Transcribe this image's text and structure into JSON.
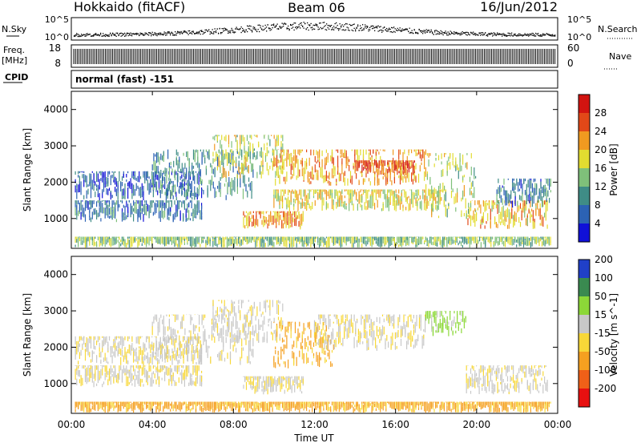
{
  "header": {
    "station": "Hokkaido (fitACF)",
    "beam": "Beam 06",
    "date": "16/Jun/2012"
  },
  "strip": {
    "nsky_label": "N.Sky",
    "nsky_ticks": [
      "10^5",
      "10^0"
    ],
    "nsearch_label": "N.Search",
    "nsearch_ticks": [
      "10^5",
      "10^0"
    ],
    "freq_label_line1": "Freq.",
    "freq_label_line2": "[MHz]",
    "freq_ticks": [
      "18",
      "8"
    ],
    "nave_label": "Nave",
    "nave_ticks": [
      "60",
      "0"
    ],
    "cpid_label": "CPID",
    "cpid_text": "normal (fast) -151"
  },
  "chart_data": [
    {
      "type": "heatmap",
      "name": "power-panel",
      "title": "",
      "xlabel": "Time UT",
      "ylabel": "Slant Range [km]",
      "xlim": [
        0,
        24
      ],
      "ylim": [
        180,
        4500
      ],
      "xticks": [
        "00:00",
        "04:00",
        "08:00",
        "12:00",
        "16:00",
        "20:00",
        "00:00"
      ],
      "yticks": [
        "1000",
        "2000",
        "3000",
        "4000"
      ],
      "ytick_values": [
        1000,
        2000,
        3000,
        4000
      ],
      "colorbar": {
        "label": "Power [dB]",
        "range": [
          0,
          32
        ],
        "ticks": [
          "4",
          "8",
          "12",
          "16",
          "20",
          "24",
          "28"
        ],
        "tick_values": [
          4,
          8,
          12,
          16,
          20,
          24,
          28
        ],
        "colors": [
          "#1010d8",
          "#2c62b4",
          "#3f8c86",
          "#7fc07a",
          "#e2dc30",
          "#f09a20",
          "#e24818",
          "#d21410"
        ]
      },
      "bands": [
        {
          "t0": 0.2,
          "t1": 6.5,
          "r0": 900,
          "r1": 1500,
          "value": 8
        },
        {
          "t0": 0.2,
          "t1": 6.5,
          "r0": 1500,
          "r1": 2300,
          "value": 6
        },
        {
          "t0": 4.0,
          "t1": 9.0,
          "r0": 1500,
          "r1": 2900,
          "value": 10
        },
        {
          "t0": 7.0,
          "t1": 10.5,
          "r0": 2100,
          "r1": 3300,
          "value": 16
        },
        {
          "t0": 8.5,
          "t1": 11.5,
          "r0": 700,
          "r1": 1200,
          "value": 22
        },
        {
          "t0": 10.0,
          "t1": 17.5,
          "r0": 1900,
          "r1": 2900,
          "value": 22
        },
        {
          "t0": 10.0,
          "t1": 18.5,
          "r0": 1200,
          "r1": 1800,
          "value": 18
        },
        {
          "t0": 14.0,
          "t1": 17.0,
          "r0": 2200,
          "r1": 2600,
          "value": 26
        },
        {
          "t0": 17.5,
          "t1": 20.0,
          "r0": 1000,
          "r1": 2800,
          "value": 16
        },
        {
          "t0": 19.5,
          "t1": 23.5,
          "r0": 700,
          "r1": 1500,
          "value": 20
        },
        {
          "t0": 21.0,
          "t1": 23.7,
          "r0": 1300,
          "r1": 2100,
          "value": 8
        },
        {
          "t0": 0.2,
          "t1": 23.7,
          "r0": 200,
          "r1": 500,
          "value": 14
        }
      ]
    },
    {
      "type": "heatmap",
      "name": "velocity-panel",
      "title": "",
      "xlabel": "Time UT",
      "ylabel": "Slant Range [km]",
      "xlim": [
        0,
        24
      ],
      "ylim": [
        180,
        4500
      ],
      "xticks": [
        "00:00",
        "04:00",
        "08:00",
        "12:00",
        "16:00",
        "20:00",
        "00:00"
      ],
      "yticks": [
        "1000",
        "2000",
        "3000",
        "4000"
      ],
      "ytick_values": [
        1000,
        2000,
        3000,
        4000
      ],
      "colorbar": {
        "label": "Velocity [m s^-1]",
        "range": [
          -250,
          250
        ],
        "ticks": [
          "-200",
          "-100",
          "-50",
          "-15",
          "15",
          "50",
          "100",
          "200"
        ],
        "tick_values": [
          -200,
          -100,
          -50,
          -15,
          15,
          50,
          100,
          200
        ],
        "bins": [
          {
            "from": -250,
            "to": -150,
            "color": "#e81010"
          },
          {
            "from": -150,
            "to": -75,
            "color": "#f06018"
          },
          {
            "from": -75,
            "to": -30,
            "color": "#f5a020"
          },
          {
            "from": -30,
            "to": 0,
            "color": "#f8d838"
          },
          {
            "from": 0,
            "to": 30,
            "color": "#c8c8c8"
          },
          {
            "from": 30,
            "to": 75,
            "color": "#8cd838"
          },
          {
            "from": 75,
            "to": 150,
            "color": "#3a8a50"
          },
          {
            "from": 150,
            "to": 250,
            "color": "#2040c8"
          }
        ]
      },
      "bands": [
        {
          "t0": 0.2,
          "t1": 6.5,
          "r0": 900,
          "r1": 1500,
          "value": 5
        },
        {
          "t0": 0.2,
          "t1": 6.5,
          "r0": 1500,
          "r1": 2300,
          "value": 5
        },
        {
          "t0": 4.0,
          "t1": 9.0,
          "r0": 1500,
          "r1": 2900,
          "value": 10
        },
        {
          "t0": 7.0,
          "t1": 10.5,
          "r0": 2100,
          "r1": 3300,
          "value": 10
        },
        {
          "t0": 8.5,
          "t1": 11.5,
          "r0": 700,
          "r1": 1200,
          "value": 5
        },
        {
          "t0": 10.0,
          "t1": 13.0,
          "r0": 1400,
          "r1": 2700,
          "value": -40
        },
        {
          "t0": 12.0,
          "t1": 17.5,
          "r0": 1900,
          "r1": 2900,
          "value": 5
        },
        {
          "t0": 17.5,
          "t1": 19.5,
          "r0": 2300,
          "r1": 3000,
          "value": 40
        },
        {
          "t0": 19.5,
          "t1": 23.5,
          "r0": 700,
          "r1": 1500,
          "value": 10
        },
        {
          "t0": 0.2,
          "t1": 23.7,
          "r0": 200,
          "r1": 500,
          "value": -40
        }
      ]
    }
  ]
}
